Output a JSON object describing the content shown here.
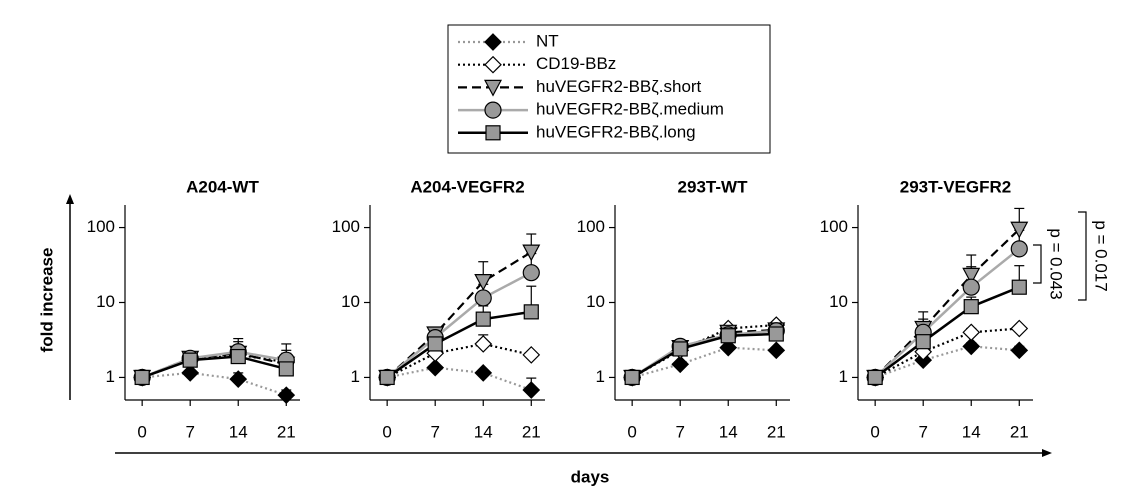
{
  "y_label": "fold increase",
  "x_label": "days",
  "legend": [
    {
      "name": "NT",
      "color": "#999999",
      "dash": "dotted",
      "marker": "diamond",
      "marker_color": "#000000"
    },
    {
      "name": "CD19-BBz",
      "color": "#000000",
      "dash": "dotted",
      "marker": "diamond",
      "marker_color": "#ffffff"
    },
    {
      "name": "huVEGFR2-BBζ.short",
      "color": "#000000",
      "dash": "dashed",
      "marker": "triangle-down",
      "marker_color": "#999999"
    },
    {
      "name": "huVEGFR2-BBζ.medium",
      "color": "#aaaaaa",
      "dash": "solid",
      "marker": "circle",
      "marker_color": "#999999"
    },
    {
      "name": "huVEGFR2-BBζ.long",
      "color": "#000000",
      "dash": "solid",
      "marker": "square",
      "marker_color": "#999999"
    }
  ],
  "chart_data": [
    {
      "type": "line",
      "title": "A204-WT",
      "x": [
        0,
        7,
        14,
        21
      ],
      "xlim": [
        -2.5,
        23
      ],
      "xticks": [
        0,
        7,
        14,
        21
      ],
      "ylim": [
        0.5,
        200
      ],
      "yticks": [
        1,
        10,
        100
      ],
      "log_scale": true,
      "series": [
        {
          "values": [
            1,
            1.15,
            0.95,
            0.58
          ],
          "errors": [
            0,
            0.1,
            0.2,
            0.1
          ]
        },
        {
          "values": [
            1,
            1.7,
            2.0,
            1.6
          ],
          "errors": [
            0,
            0.2,
            0.6,
            0.5
          ]
        },
        {
          "values": [
            1,
            1.8,
            2.1,
            1.5
          ],
          "errors": [
            0,
            0.2,
            0.9,
            0.8
          ]
        },
        {
          "values": [
            1,
            1.8,
            2.2,
            1.7
          ],
          "errors": [
            0,
            0.3,
            1.1,
            1.1
          ]
        },
        {
          "values": [
            1,
            1.7,
            1.9,
            1.3
          ],
          "errors": [
            0,
            0.2,
            0.6,
            0.5
          ]
        }
      ]
    },
    {
      "type": "line",
      "title": "A204-VEGFR2",
      "x": [
        0,
        7,
        14,
        21
      ],
      "xlim": [
        -2.5,
        23
      ],
      "xticks": [
        0,
        7,
        14,
        21
      ],
      "ylim": [
        0.5,
        200
      ],
      "yticks": [
        1,
        10,
        100
      ],
      "log_scale": true,
      "series": [
        {
          "values": [
            1,
            1.35,
            1.15,
            0.68
          ],
          "errors": [
            0,
            0.1,
            0.1,
            0.3
          ]
        },
        {
          "values": [
            1,
            2.1,
            2.8,
            2.0
          ],
          "errors": [
            0,
            0.3,
            0.9,
            0.2
          ]
        },
        {
          "values": [
            1,
            3.8,
            19,
            47
          ],
          "errors": [
            0,
            0.8,
            16,
            35
          ]
        },
        {
          "values": [
            1,
            3.4,
            11.5,
            25
          ],
          "errors": [
            0,
            0.6,
            6,
            20
          ]
        },
        {
          "values": [
            1,
            2.8,
            6.0,
            7.5
          ],
          "errors": [
            0,
            0.8,
            3,
            9
          ]
        }
      ]
    },
    {
      "type": "line",
      "title": "293T-WT",
      "x": [
        0,
        7,
        14,
        21
      ],
      "xlim": [
        -2.5,
        23
      ],
      "xticks": [
        0,
        7,
        14,
        21
      ],
      "ylim": [
        0.5,
        200
      ],
      "yticks": [
        1,
        10,
        100
      ],
      "log_scale": true,
      "series": [
        {
          "values": [
            1,
            1.5,
            2.5,
            2.3
          ],
          "errors": [
            0,
            0.1,
            0.2,
            0.2
          ]
        },
        {
          "values": [
            1,
            2.3,
            4.5,
            5.0
          ],
          "errors": [
            0,
            0.2,
            0.3,
            0.4
          ]
        },
        {
          "values": [
            1,
            2.5,
            4.0,
            4.3
          ],
          "errors": [
            0,
            0.3,
            0.4,
            0.5
          ]
        },
        {
          "values": [
            1,
            2.6,
            3.7,
            4.2
          ],
          "errors": [
            0,
            0.3,
            0.4,
            0.5
          ]
        },
        {
          "values": [
            1,
            2.4,
            3.6,
            3.8
          ],
          "errors": [
            0,
            0.2,
            0.3,
            0.4
          ]
        }
      ]
    },
    {
      "type": "line",
      "title": "293T-VEGFR2",
      "x": [
        0,
        7,
        14,
        21
      ],
      "xlim": [
        -2.5,
        23
      ],
      "xticks": [
        0,
        7,
        14,
        21
      ],
      "ylim": [
        0.5,
        200
      ],
      "yticks": [
        1,
        10,
        100
      ],
      "log_scale": true,
      "annotations": [
        "p = 0.017",
        "p = 0.043"
      ],
      "series": [
        {
          "values": [
            1,
            1.7,
            2.6,
            2.3
          ],
          "errors": [
            0,
            0.2,
            0.3,
            0.3
          ]
        },
        {
          "values": [
            1,
            2.2,
            4.0,
            4.5
          ],
          "errors": [
            0,
            0.3,
            0.5,
            0.4
          ]
        },
        {
          "values": [
            1,
            4.5,
            23,
            95
          ],
          "errors": [
            0,
            3,
            20,
            85
          ]
        },
        {
          "values": [
            1,
            4.0,
            16,
            52
          ],
          "errors": [
            0,
            2,
            14,
            40
          ]
        },
        {
          "values": [
            1,
            3.0,
            8.8,
            16
          ],
          "errors": [
            0,
            1,
            3,
            15
          ]
        }
      ]
    }
  ]
}
